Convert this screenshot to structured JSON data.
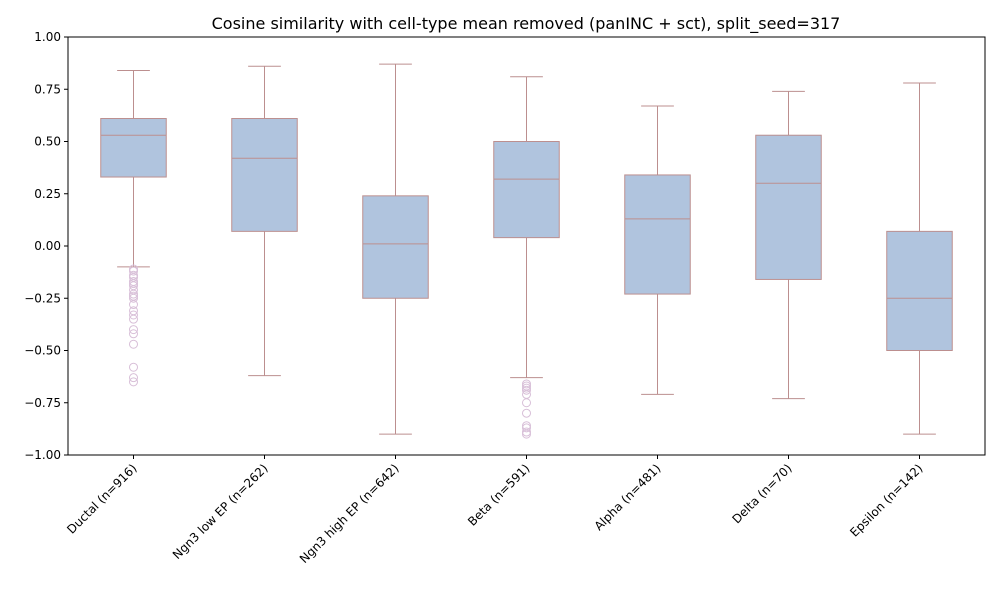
{
  "chart_data": {
    "type": "box",
    "title": "Cosine similarity with cell-type mean removed (panINC + sct), split_seed=317",
    "xlabel": "",
    "ylabel": "",
    "ylim": [
      -1.0,
      1.0
    ],
    "yticks": [
      "−1.00",
      "−0.75",
      "−0.50",
      "−0.25",
      "0.00",
      "0.25",
      "0.50",
      "0.75",
      "1.00"
    ],
    "grid": false,
    "categories": [
      "Ductal (n=916)",
      "Ngn3 low EP (n=262)",
      "Ngn3 high EP (n=642)",
      "Beta (n=591)",
      "Alpha (n=481)",
      "Delta (n=70)",
      "Epsilon (n=142)"
    ],
    "boxes": [
      {
        "whisker_low": -0.1,
        "q1": 0.33,
        "median": 0.53,
        "q3": 0.61,
        "whisker_high": 0.84,
        "outliers": [
          -0.11,
          -0.12,
          -0.14,
          -0.15,
          -0.17,
          -0.18,
          -0.19,
          -0.21,
          -0.23,
          -0.24,
          -0.25,
          -0.28,
          -0.31,
          -0.33,
          -0.35,
          -0.4,
          -0.42,
          -0.47,
          -0.58,
          -0.63,
          -0.65
        ]
      },
      {
        "whisker_low": -0.62,
        "q1": 0.07,
        "median": 0.42,
        "q3": 0.61,
        "whisker_high": 0.86,
        "outliers": []
      },
      {
        "whisker_low": -0.9,
        "q1": -0.25,
        "median": 0.01,
        "q3": 0.24,
        "whisker_high": 0.87,
        "outliers": []
      },
      {
        "whisker_low": -0.63,
        "q1": 0.04,
        "median": 0.32,
        "q3": 0.5,
        "whisker_high": 0.81,
        "outliers": [
          -0.66,
          -0.67,
          -0.68,
          -0.69,
          -0.71,
          -0.75,
          -0.8,
          -0.86,
          -0.87,
          -0.89,
          -0.9
        ]
      },
      {
        "whisker_low": -0.71,
        "q1": -0.23,
        "median": 0.13,
        "q3": 0.34,
        "whisker_high": 0.67,
        "outliers": []
      },
      {
        "whisker_low": -0.73,
        "q1": -0.16,
        "median": 0.3,
        "q3": 0.53,
        "whisker_high": 0.74,
        "outliers": []
      },
      {
        "whisker_low": -0.9,
        "q1": -0.5,
        "median": -0.25,
        "q3": 0.07,
        "whisker_high": 0.78,
        "outliers": []
      }
    ],
    "colors": {
      "box_fill": "#b0c4de",
      "box_edge": "#bc8f8f",
      "outlier_edge": "#d8bfd8"
    }
  }
}
